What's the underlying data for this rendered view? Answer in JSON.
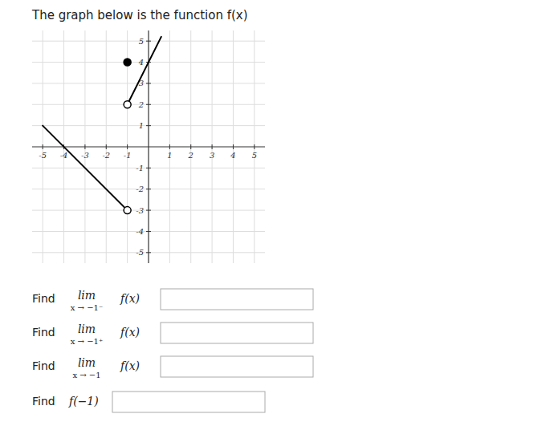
{
  "chart_data": {
    "type": "line",
    "title": "The graph below is the function f(x)",
    "xlim": [
      -5.5,
      5.5
    ],
    "ylim": [
      -5.5,
      5.5
    ],
    "xticks": [
      -5,
      -4,
      -3,
      -2,
      -1,
      1,
      2,
      3,
      4,
      5
    ],
    "yticks": [
      -5,
      -4,
      -3,
      -2,
      -1,
      1,
      2,
      3,
      4,
      5
    ],
    "grid": true,
    "series": [
      {
        "type": "line",
        "x": [
          -5,
          -1
        ],
        "values": [
          1,
          -3
        ],
        "color": "#000000"
      },
      {
        "type": "line",
        "x": [
          -1,
          0.6
        ],
        "values": [
          2,
          5.2
        ],
        "color": "#000000"
      },
      {
        "type": "scatter",
        "x": [
          -1,
          -1
        ],
        "values": [
          -3,
          2
        ],
        "marker": "open",
        "color": "#000000"
      },
      {
        "type": "scatter",
        "x": [
          -1
        ],
        "values": [
          4
        ],
        "marker": "filled",
        "color": "#000000"
      }
    ],
    "annotations": [
      [
        "Find",
        "lim",
        "x → −1⁻",
        "f(x)"
      ],
      [
        "Find",
        "lim",
        "x → −1⁺",
        "f(x)"
      ],
      [
        "Find",
        "lim",
        "x → −1",
        "f(x)"
      ],
      [
        "Find",
        "f(−1)"
      ]
    ]
  }
}
